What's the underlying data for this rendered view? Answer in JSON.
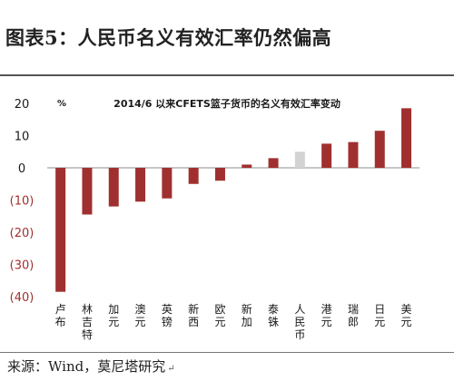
{
  "figure": {
    "title": "图表5：人民币名义有效汇率仍然偏高",
    "source": "来源：Wind，莫尼塔研究"
  },
  "chart_data": {
    "type": "bar",
    "title": "2014/6 以来CFETS篮子货币的名义有效汇率变动",
    "ylabel": "%",
    "ylim": [
      -40,
      20
    ],
    "yticks": [
      "20",
      "10",
      "0",
      "(10)",
      "(20)",
      "(30)",
      "(40)"
    ],
    "ytick_values": [
      20,
      10,
      0,
      -10,
      -20,
      -30,
      -40
    ],
    "categories": [
      "卢布",
      "林吉特",
      "加元",
      "澳元",
      "英镑",
      "新西",
      "欧元",
      "新加",
      "泰铢",
      "人民币",
      "港元",
      "瑞郎",
      "日元",
      "美元"
    ],
    "values": [
      -38.5,
      -14.5,
      -12,
      -10.5,
      -9.5,
      -5,
      -4,
      1,
      3,
      5,
      7.5,
      8,
      11.5,
      18.5
    ],
    "highlight_category": "人民币",
    "colors": {
      "bar": "#a0302f",
      "highlight": "#d3d3d3",
      "negative_tick": "#a0302f",
      "axis": "#8c8c8c",
      "text": "#1a1a1a"
    },
    "grid": false
  }
}
